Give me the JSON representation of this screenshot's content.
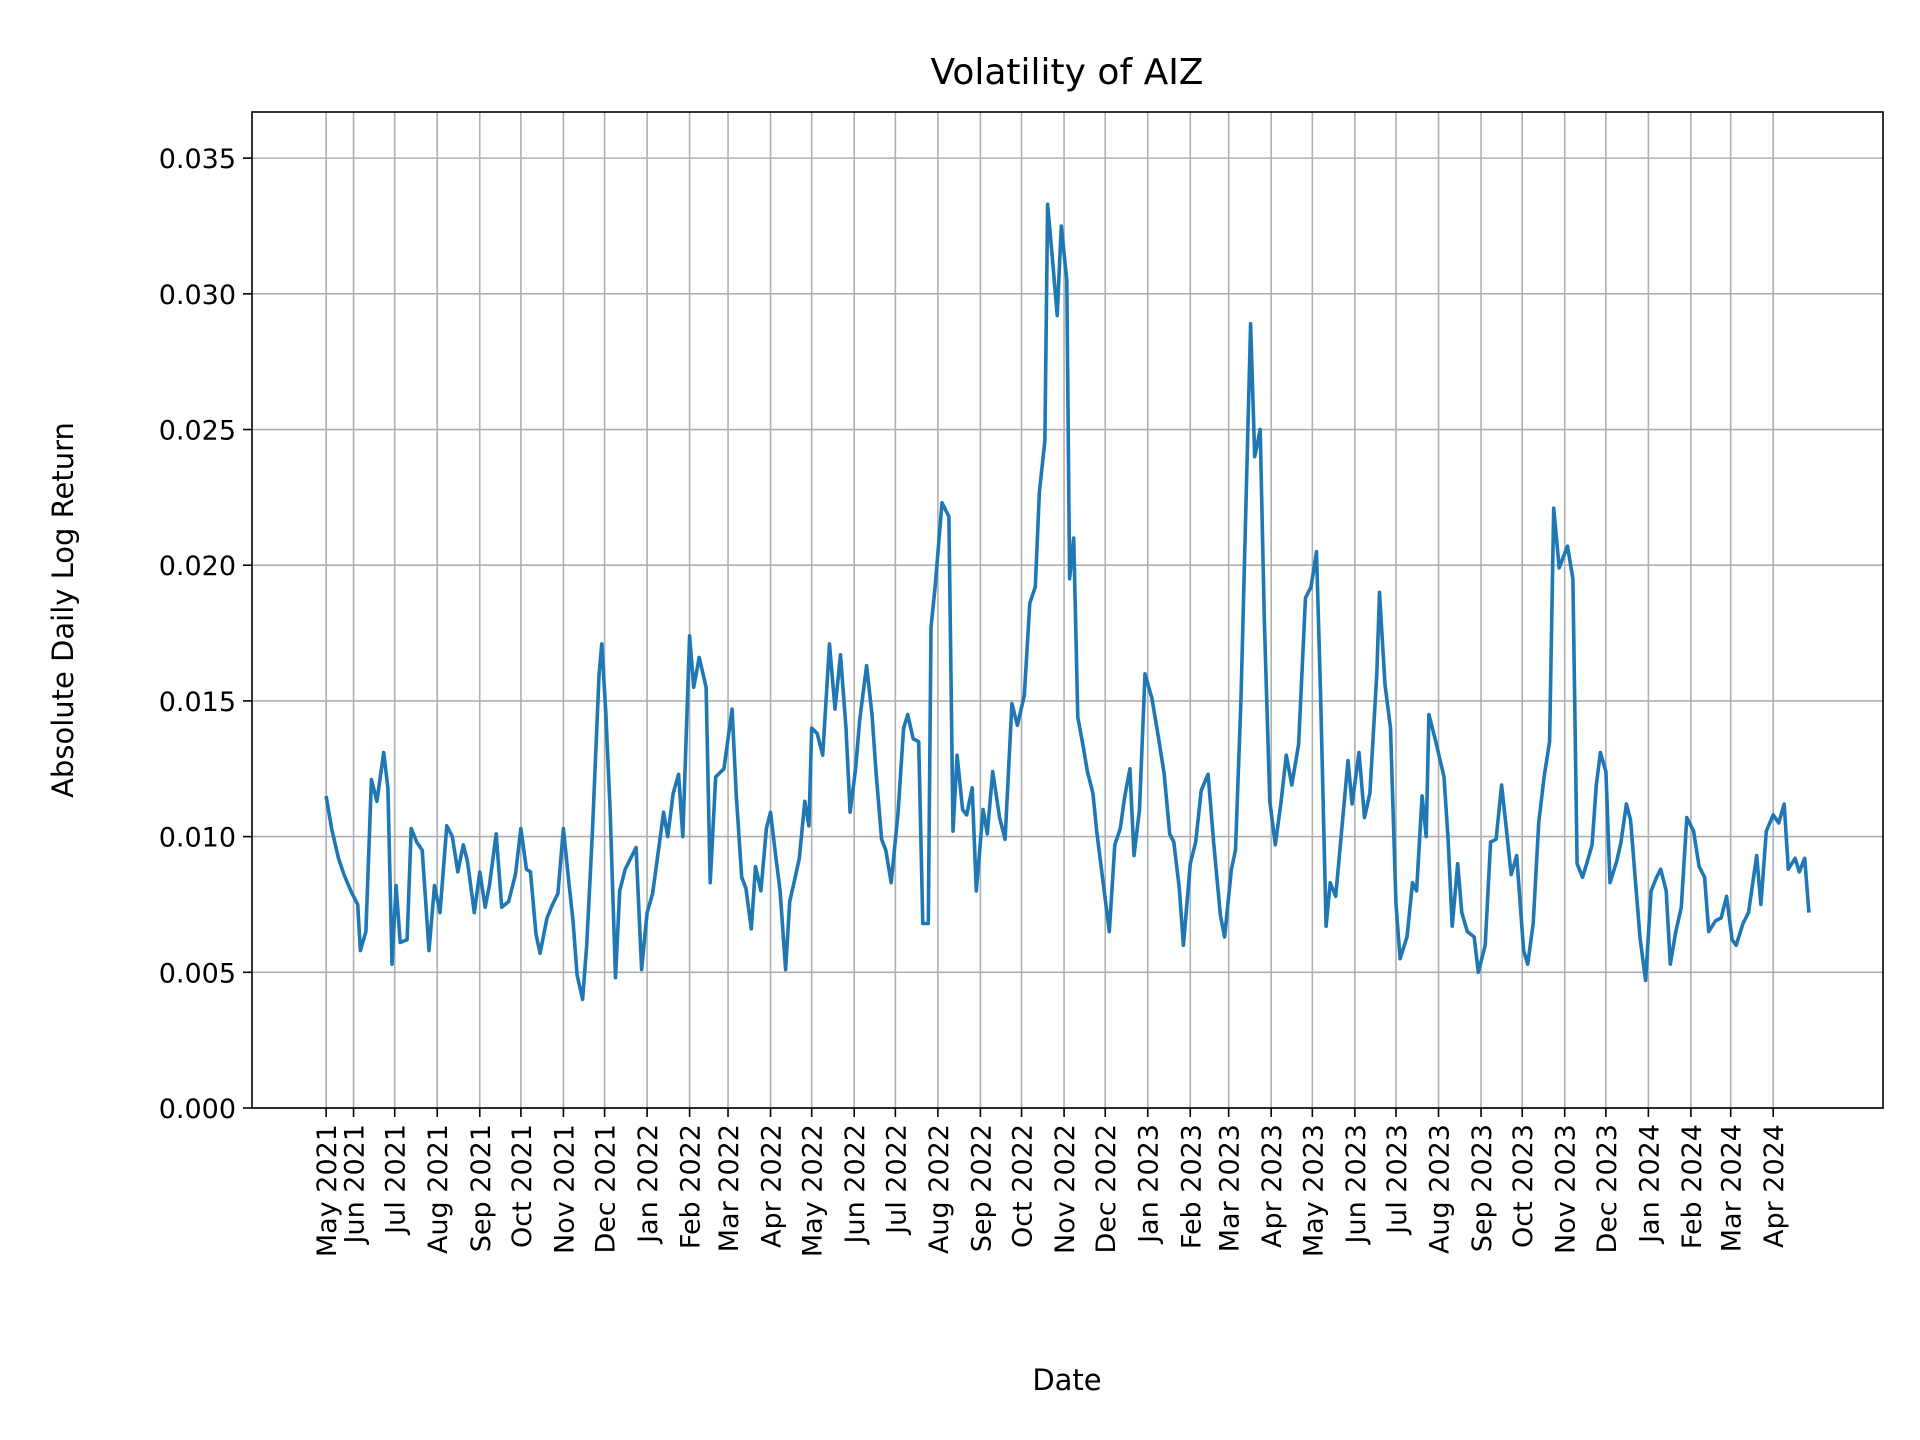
{
  "chart_data": {
    "type": "line",
    "title": "Volatility of AIZ",
    "xlabel": "Date",
    "ylabel": "Absolute Daily Log Return",
    "ylim": [
      0,
      0.0367
    ],
    "grid": true,
    "line_color": "#1f77b4",
    "y_ticks": [
      "0.000",
      "0.005",
      "0.010",
      "0.015",
      "0.020",
      "0.025",
      "0.030",
      "0.035"
    ],
    "x_ticks": [
      {
        "date": "2021-05-12",
        "label": "May 2021"
      },
      {
        "date": "2021-06-01",
        "label": "Jun 2021"
      },
      {
        "date": "2021-07-01",
        "label": "Jul 2021"
      },
      {
        "date": "2021-08-01",
        "label": "Aug 2021"
      },
      {
        "date": "2021-09-01",
        "label": "Sep 2021"
      },
      {
        "date": "2021-10-01",
        "label": "Oct 2021"
      },
      {
        "date": "2021-11-01",
        "label": "Nov 2021"
      },
      {
        "date": "2021-12-01",
        "label": "Dec 2021"
      },
      {
        "date": "2022-01-01",
        "label": "Jan 2022"
      },
      {
        "date": "2022-02-01",
        "label": "Feb 2022"
      },
      {
        "date": "2022-03-01",
        "label": "Mar 2022"
      },
      {
        "date": "2022-04-01",
        "label": "Apr 2022"
      },
      {
        "date": "2022-05-01",
        "label": "May 2022"
      },
      {
        "date": "2022-06-01",
        "label": "Jun 2022"
      },
      {
        "date": "2022-07-01",
        "label": "Jul 2022"
      },
      {
        "date": "2022-08-01",
        "label": "Aug 2022"
      },
      {
        "date": "2022-09-01",
        "label": "Sep 2022"
      },
      {
        "date": "2022-10-01",
        "label": "Oct 2022"
      },
      {
        "date": "2022-11-01",
        "label": "Nov 2022"
      },
      {
        "date": "2022-12-01",
        "label": "Dec 2022"
      },
      {
        "date": "2023-01-01",
        "label": "Jan 2023"
      },
      {
        "date": "2023-02-01",
        "label": "Feb 2023"
      },
      {
        "date": "2023-03-01",
        "label": "Mar 2023"
      },
      {
        "date": "2023-04-01",
        "label": "Apr 2023"
      },
      {
        "date": "2023-05-01",
        "label": "May 2023"
      },
      {
        "date": "2023-06-01",
        "label": "Jun 2023"
      },
      {
        "date": "2023-07-01",
        "label": "Jul 2023"
      },
      {
        "date": "2023-08-01",
        "label": "Aug 2023"
      },
      {
        "date": "2023-09-01",
        "label": "Sep 2023"
      },
      {
        "date": "2023-10-01",
        "label": "Oct 2023"
      },
      {
        "date": "2023-11-01",
        "label": "Nov 2023"
      },
      {
        "date": "2023-12-01",
        "label": "Dec 2023"
      },
      {
        "date": "2024-01-01",
        "label": "Jan 2024"
      },
      {
        "date": "2024-02-01",
        "label": "Feb 2024"
      },
      {
        "date": "2024-03-01",
        "label": "Mar 2024"
      },
      {
        "date": "2024-04-01",
        "label": "Apr 2024"
      }
    ],
    "points": [
      [
        "2021-05-12",
        0.0115
      ],
      [
        "2021-05-16",
        0.0103
      ],
      [
        "2021-05-21",
        0.0092
      ],
      [
        "2021-05-25",
        0.0086
      ],
      [
        "2021-05-30",
        0.008
      ],
      [
        "2021-06-04",
        0.0075
      ],
      [
        "2021-06-06",
        0.0058
      ],
      [
        "2021-06-10",
        0.0065
      ],
      [
        "2021-06-14",
        0.0121
      ],
      [
        "2021-06-18",
        0.0113
      ],
      [
        "2021-06-23",
        0.0131
      ],
      [
        "2021-06-26",
        0.0118
      ],
      [
        "2021-06-29",
        0.0053
      ],
      [
        "2021-07-02",
        0.0082
      ],
      [
        "2021-07-05",
        0.0061
      ],
      [
        "2021-07-10",
        0.0062
      ],
      [
        "2021-07-13",
        0.0103
      ],
      [
        "2021-07-17",
        0.0098
      ],
      [
        "2021-07-21",
        0.0095
      ],
      [
        "2021-07-26",
        0.0058
      ],
      [
        "2021-07-30",
        0.0082
      ],
      [
        "2021-08-03",
        0.0072
      ],
      [
        "2021-08-08",
        0.0104
      ],
      [
        "2021-08-12",
        0.01
      ],
      [
        "2021-08-16",
        0.0087
      ],
      [
        "2021-08-20",
        0.0097
      ],
      [
        "2021-08-23",
        0.0091
      ],
      [
        "2021-08-28",
        0.0072
      ],
      [
        "2021-09-01",
        0.0087
      ],
      [
        "2021-09-05",
        0.0074
      ],
      [
        "2021-09-08",
        0.0082
      ],
      [
        "2021-09-13",
        0.0101
      ],
      [
        "2021-09-17",
        0.0074
      ],
      [
        "2021-09-22",
        0.0076
      ],
      [
        "2021-09-27",
        0.0086
      ],
      [
        "2021-10-01",
        0.0103
      ],
      [
        "2021-10-05",
        0.0088
      ],
      [
        "2021-10-08",
        0.0087
      ],
      [
        "2021-10-12",
        0.0064
      ],
      [
        "2021-10-15",
        0.0057
      ],
      [
        "2021-10-20",
        0.007
      ],
      [
        "2021-10-24",
        0.0075
      ],
      [
        "2021-10-28",
        0.0079
      ],
      [
        "2021-11-01",
        0.0103
      ],
      [
        "2021-11-05",
        0.0083
      ],
      [
        "2021-11-08",
        0.0069
      ],
      [
        "2021-11-11",
        0.0049
      ],
      [
        "2021-11-15",
        0.004
      ],
      [
        "2021-11-18",
        0.006
      ],
      [
        "2021-11-22",
        0.01
      ],
      [
        "2021-11-27",
        0.016
      ],
      [
        "2021-11-29",
        0.0171
      ],
      [
        "2021-12-02",
        0.0145
      ],
      [
        "2021-12-05",
        0.011
      ],
      [
        "2021-12-09",
        0.0048
      ],
      [
        "2021-12-12",
        0.008
      ],
      [
        "2021-12-16",
        0.0088
      ],
      [
        "2021-12-19",
        0.0091
      ],
      [
        "2021-12-24",
        0.0096
      ],
      [
        "2021-12-28",
        0.0051
      ],
      [
        "2022-01-01",
        0.0072
      ],
      [
        "2022-01-05",
        0.0079
      ],
      [
        "2022-01-09",
        0.0094
      ],
      [
        "2022-01-13",
        0.0109
      ],
      [
        "2022-01-16",
        0.01
      ],
      [
        "2022-01-20",
        0.0116
      ],
      [
        "2022-01-24",
        0.0123
      ],
      [
        "2022-01-27",
        0.01
      ],
      [
        "2022-02-01",
        0.0174
      ],
      [
        "2022-02-04",
        0.0155
      ],
      [
        "2022-02-08",
        0.0166
      ],
      [
        "2022-02-13",
        0.0155
      ],
      [
        "2022-02-16",
        0.0083
      ],
      [
        "2022-02-20",
        0.0122
      ],
      [
        "2022-02-26",
        0.0125
      ],
      [
        "2022-03-04",
        0.0147
      ],
      [
        "2022-03-07",
        0.0115
      ],
      [
        "2022-03-11",
        0.0085
      ],
      [
        "2022-03-14",
        0.0081
      ],
      [
        "2022-03-18",
        0.0066
      ],
      [
        "2022-03-21",
        0.0089
      ],
      [
        "2022-03-25",
        0.008
      ],
      [
        "2022-03-29",
        0.0103
      ],
      [
        "2022-04-01",
        0.0109
      ],
      [
        "2022-04-05",
        0.0092
      ],
      [
        "2022-04-08",
        0.008
      ],
      [
        "2022-04-12",
        0.0051
      ],
      [
        "2022-04-15",
        0.0076
      ],
      [
        "2022-04-19",
        0.0085
      ],
      [
        "2022-04-22",
        0.0092
      ],
      [
        "2022-04-26",
        0.0113
      ],
      [
        "2022-04-29",
        0.0104
      ],
      [
        "2022-05-01",
        0.014
      ],
      [
        "2022-05-05",
        0.0138
      ],
      [
        "2022-05-09",
        0.013
      ],
      [
        "2022-05-14",
        0.0171
      ],
      [
        "2022-05-18",
        0.0147
      ],
      [
        "2022-05-22",
        0.0167
      ],
      [
        "2022-05-26",
        0.014
      ],
      [
        "2022-05-29",
        0.0109
      ],
      [
        "2022-06-02",
        0.0125
      ],
      [
        "2022-06-05",
        0.0143
      ],
      [
        "2022-06-10",
        0.0163
      ],
      [
        "2022-06-14",
        0.0145
      ],
      [
        "2022-06-17",
        0.0123
      ],
      [
        "2022-06-21",
        0.0099
      ],
      [
        "2022-06-24",
        0.0095
      ],
      [
        "2022-06-28",
        0.0083
      ],
      [
        "2022-07-03",
        0.0109
      ],
      [
        "2022-07-07",
        0.014
      ],
      [
        "2022-07-10",
        0.0145
      ],
      [
        "2022-07-14",
        0.0136
      ],
      [
        "2022-07-18",
        0.0135
      ],
      [
        "2022-07-21",
        0.0068
      ],
      [
        "2022-07-25",
        0.0068
      ],
      [
        "2022-07-27",
        0.0177
      ],
      [
        "2022-07-30",
        0.0192
      ],
      [
        "2022-08-04",
        0.0223
      ],
      [
        "2022-08-09",
        0.0218
      ],
      [
        "2022-08-12",
        0.0102
      ],
      [
        "2022-08-15",
        0.013
      ],
      [
        "2022-08-19",
        0.011
      ],
      [
        "2022-08-22",
        0.0108
      ],
      [
        "2022-08-26",
        0.0118
      ],
      [
        "2022-08-29",
        0.008
      ],
      [
        "2022-09-03",
        0.011
      ],
      [
        "2022-09-06",
        0.0101
      ],
      [
        "2022-09-10",
        0.0124
      ],
      [
        "2022-09-15",
        0.0107
      ],
      [
        "2022-09-19",
        0.0099
      ],
      [
        "2022-09-24",
        0.0149
      ],
      [
        "2022-09-28",
        0.0141
      ],
      [
        "2022-10-03",
        0.0152
      ],
      [
        "2022-10-07",
        0.0186
      ],
      [
        "2022-10-11",
        0.0192
      ],
      [
        "2022-10-14",
        0.0227
      ],
      [
        "2022-10-18",
        0.0246
      ],
      [
        "2022-10-20",
        0.0333
      ],
      [
        "2022-10-24",
        0.031
      ],
      [
        "2022-10-27",
        0.0292
      ],
      [
        "2022-10-30",
        0.0325
      ],
      [
        "2022-11-03",
        0.0305
      ],
      [
        "2022-11-05",
        0.0195
      ],
      [
        "2022-11-08",
        0.021
      ],
      [
        "2022-11-11",
        0.0144
      ],
      [
        "2022-11-15",
        0.0133
      ],
      [
        "2022-11-18",
        0.0124
      ],
      [
        "2022-11-22",
        0.0116
      ],
      [
        "2022-11-25",
        0.0101
      ],
      [
        "2022-11-29",
        0.0085
      ],
      [
        "2022-12-04",
        0.0065
      ],
      [
        "2022-12-08",
        0.0097
      ],
      [
        "2022-12-12",
        0.0103
      ],
      [
        "2022-12-15",
        0.0114
      ],
      [
        "2022-12-19",
        0.0125
      ],
      [
        "2022-12-22",
        0.0093
      ],
      [
        "2022-12-26",
        0.011
      ],
      [
        "2022-12-30",
        0.016
      ],
      [
        "2023-01-04",
        0.0151
      ],
      [
        "2023-01-09",
        0.0136
      ],
      [
        "2023-01-13",
        0.0123
      ],
      [
        "2023-01-17",
        0.0101
      ],
      [
        "2023-01-20",
        0.0098
      ],
      [
        "2023-01-24",
        0.0081
      ],
      [
        "2023-01-27",
        0.006
      ],
      [
        "2023-02-01",
        0.009
      ],
      [
        "2023-02-05",
        0.0098
      ],
      [
        "2023-02-09",
        0.0117
      ],
      [
        "2023-02-14",
        0.0123
      ],
      [
        "2023-02-18",
        0.0098
      ],
      [
        "2023-02-23",
        0.0071
      ],
      [
        "2023-02-26",
        0.0063
      ],
      [
        "2023-03-03",
        0.0088
      ],
      [
        "2023-03-06",
        0.0095
      ],
      [
        "2023-03-10",
        0.0151
      ],
      [
        "2023-03-13",
        0.021
      ],
      [
        "2023-03-17",
        0.0289
      ],
      [
        "2023-03-20",
        0.024
      ],
      [
        "2023-03-24",
        0.025
      ],
      [
        "2023-03-27",
        0.018
      ],
      [
        "2023-03-31",
        0.0113
      ],
      [
        "2023-04-04",
        0.0097
      ],
      [
        "2023-04-08",
        0.0112
      ],
      [
        "2023-04-12",
        0.013
      ],
      [
        "2023-04-16",
        0.0119
      ],
      [
        "2023-04-21",
        0.0134
      ],
      [
        "2023-04-26",
        0.0188
      ],
      [
        "2023-04-30",
        0.0192
      ],
      [
        "2023-05-04",
        0.0205
      ],
      [
        "2023-05-07",
        0.0152
      ],
      [
        "2023-05-11",
        0.0067
      ],
      [
        "2023-05-14",
        0.0083
      ],
      [
        "2023-05-18",
        0.0078
      ],
      [
        "2023-05-22",
        0.01
      ],
      [
        "2023-05-27",
        0.0128
      ],
      [
        "2023-05-30",
        0.0112
      ],
      [
        "2023-06-04",
        0.0131
      ],
      [
        "2023-06-08",
        0.0107
      ],
      [
        "2023-06-12",
        0.0116
      ],
      [
        "2023-06-17",
        0.016
      ],
      [
        "2023-06-19",
        0.019
      ],
      [
        "2023-06-23",
        0.0156
      ],
      [
        "2023-06-27",
        0.014
      ],
      [
        "2023-07-01",
        0.0075
      ],
      [
        "2023-07-04",
        0.0055
      ],
      [
        "2023-07-09",
        0.0063
      ],
      [
        "2023-07-13",
        0.0083
      ],
      [
        "2023-07-16",
        0.008
      ],
      [
        "2023-07-20",
        0.0115
      ],
      [
        "2023-07-23",
        0.01
      ],
      [
        "2023-07-25",
        0.0145
      ],
      [
        "2023-07-30",
        0.0135
      ],
      [
        "2023-08-05",
        0.0122
      ],
      [
        "2023-08-08",
        0.0099
      ],
      [
        "2023-08-11",
        0.0067
      ],
      [
        "2023-08-15",
        0.009
      ],
      [
        "2023-08-18",
        0.0072
      ],
      [
        "2023-08-22",
        0.0065
      ],
      [
        "2023-08-27",
        0.0063
      ],
      [
        "2023-08-30",
        0.005
      ],
      [
        "2023-09-04",
        0.006
      ],
      [
        "2023-09-08",
        0.0098
      ],
      [
        "2023-09-12",
        0.0099
      ],
      [
        "2023-09-16",
        0.0119
      ],
      [
        "2023-09-19",
        0.0105
      ],
      [
        "2023-09-23",
        0.0086
      ],
      [
        "2023-09-27",
        0.0093
      ],
      [
        "2023-10-02",
        0.0058
      ],
      [
        "2023-10-05",
        0.0053
      ],
      [
        "2023-10-09",
        0.0068
      ],
      [
        "2023-10-13",
        0.0105
      ],
      [
        "2023-10-17",
        0.0122
      ],
      [
        "2023-10-21",
        0.0135
      ],
      [
        "2023-10-24",
        0.0221
      ],
      [
        "2023-10-28",
        0.0199
      ],
      [
        "2023-11-03",
        0.0207
      ],
      [
        "2023-11-07",
        0.0195
      ],
      [
        "2023-11-10",
        0.009
      ],
      [
        "2023-11-14",
        0.0085
      ],
      [
        "2023-11-17",
        0.009
      ],
      [
        "2023-11-21",
        0.0097
      ],
      [
        "2023-11-24",
        0.0119
      ],
      [
        "2023-11-27",
        0.0131
      ],
      [
        "2023-12-01",
        0.0124
      ],
      [
        "2023-12-04",
        0.0083
      ],
      [
        "2023-12-09",
        0.0091
      ],
      [
        "2023-12-12",
        0.0098
      ],
      [
        "2023-12-16",
        0.0112
      ],
      [
        "2023-12-19",
        0.0106
      ],
      [
        "2023-12-23",
        0.0081
      ],
      [
        "2023-12-26",
        0.0062
      ],
      [
        "2023-12-30",
        0.0047
      ],
      [
        "2024-01-03",
        0.008
      ],
      [
        "2024-01-07",
        0.0085
      ],
      [
        "2024-01-10",
        0.0088
      ],
      [
        "2024-01-14",
        0.008
      ],
      [
        "2024-01-17",
        0.0053
      ],
      [
        "2024-01-21",
        0.0065
      ],
      [
        "2024-01-25",
        0.0074
      ],
      [
        "2024-01-29",
        0.0107
      ],
      [
        "2024-02-03",
        0.0102
      ],
      [
        "2024-02-07",
        0.0089
      ],
      [
        "2024-02-11",
        0.0085
      ],
      [
        "2024-02-14",
        0.0065
      ],
      [
        "2024-02-19",
        0.0069
      ],
      [
        "2024-02-23",
        0.007
      ],
      [
        "2024-02-27",
        0.0078
      ],
      [
        "2024-03-02",
        0.0062
      ],
      [
        "2024-03-05",
        0.006
      ],
      [
        "2024-03-10",
        0.0068
      ],
      [
        "2024-03-14",
        0.0072
      ],
      [
        "2024-03-20",
        0.0093
      ],
      [
        "2024-03-23",
        0.0075
      ],
      [
        "2024-03-27",
        0.0102
      ],
      [
        "2024-04-01",
        0.0108
      ],
      [
        "2024-04-05",
        0.0105
      ],
      [
        "2024-04-09",
        0.0112
      ],
      [
        "2024-04-12",
        0.0088
      ],
      [
        "2024-04-17",
        0.0092
      ],
      [
        "2024-04-20",
        0.0087
      ],
      [
        "2024-04-24",
        0.0092
      ],
      [
        "2024-04-27",
        0.0072
      ]
    ]
  }
}
